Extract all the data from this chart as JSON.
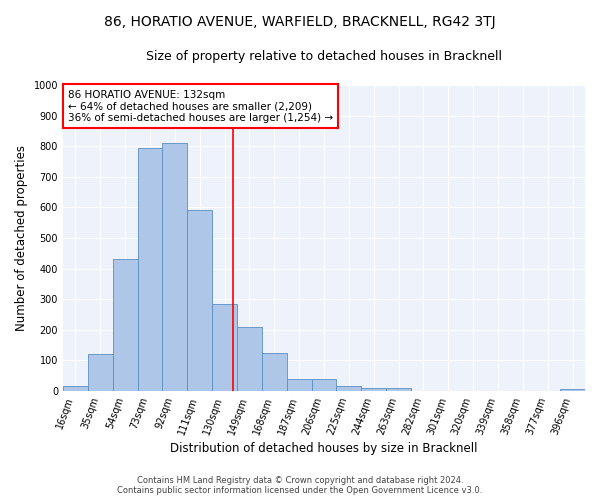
{
  "title_line1": "86, HORATIO AVENUE, WARFIELD, BRACKNELL, RG42 3TJ",
  "title_line2": "Size of property relative to detached houses in Bracknell",
  "xlabel": "Distribution of detached houses by size in Bracknell",
  "ylabel": "Number of detached properties",
  "bar_labels": [
    "16sqm",
    "35sqm",
    "54sqm",
    "73sqm",
    "92sqm",
    "111sqm",
    "130sqm",
    "149sqm",
    "168sqm",
    "187sqm",
    "206sqm",
    "225sqm",
    "244sqm",
    "263sqm",
    "282sqm",
    "301sqm",
    "320sqm",
    "339sqm",
    "358sqm",
    "377sqm",
    "396sqm"
  ],
  "bar_values": [
    18,
    122,
    430,
    795,
    810,
    590,
    285,
    210,
    125,
    40,
    40,
    15,
    10,
    10,
    0,
    0,
    0,
    0,
    0,
    0,
    8
  ],
  "bar_color": "#aec6e8",
  "bar_edge_color": "#5a8fc4",
  "vline_x_index": 6,
  "vline_x_offset": 0.35,
  "vline_color": "red",
  "annotation_text": "86 HORATIO AVENUE: 132sqm\n← 64% of detached houses are smaller (2,209)\n36% of semi-detached houses are larger (1,254) →",
  "annotation_box_color": "white",
  "annotation_box_edge": "red",
  "ylim": [
    0,
    1000
  ],
  "yticks": [
    0,
    100,
    200,
    300,
    400,
    500,
    600,
    700,
    800,
    900,
    1000
  ],
  "background_color": "#eef2fb",
  "footer_line1": "Contains HM Land Registry data © Crown copyright and database right 2024.",
  "footer_line2": "Contains public sector information licensed under the Open Government Licence v3.0.",
  "title_fontsize": 10,
  "subtitle_fontsize": 9,
  "axis_label_fontsize": 8.5,
  "tick_fontsize": 7,
  "annotation_fontsize": 7.5,
  "fig_width": 6.0,
  "fig_height": 5.0,
  "dpi": 100
}
